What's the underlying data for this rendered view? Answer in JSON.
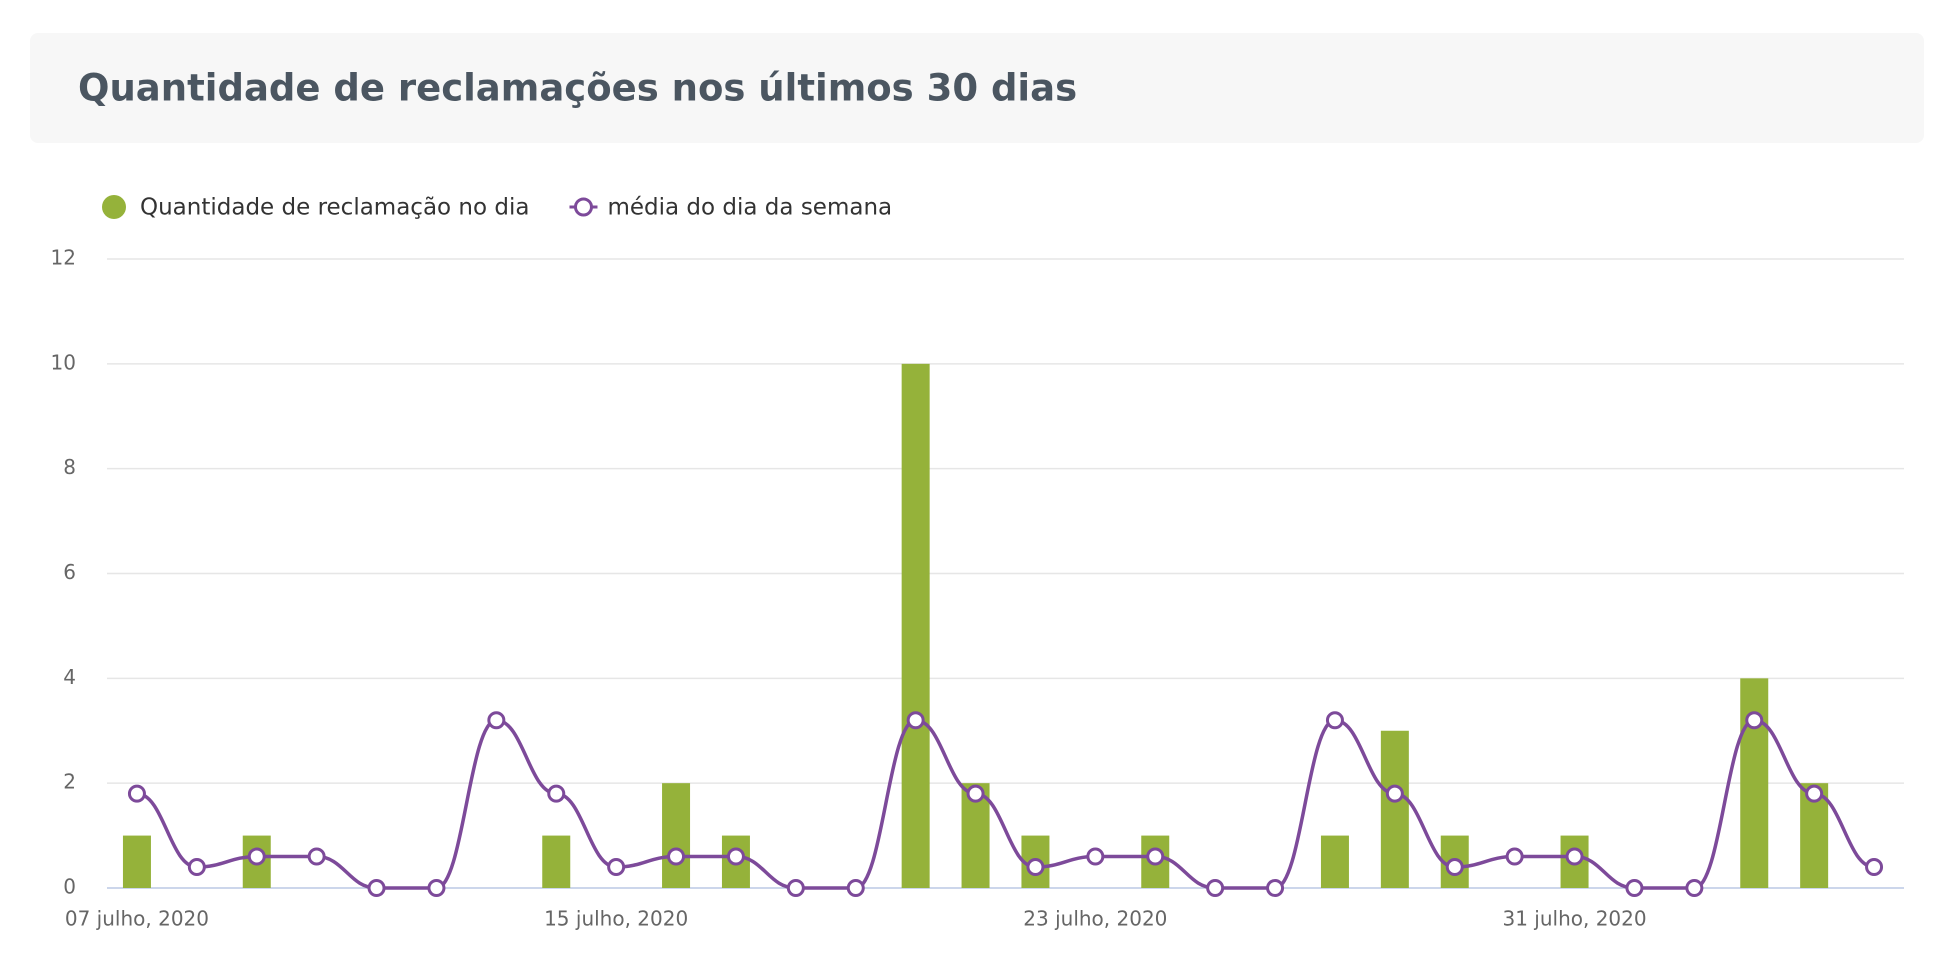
{
  "chart_data": {
    "type": "bar+line",
    "title": "Quantidade de reclamações nos últimos 30 dias",
    "categories": [
      "07 julho, 2020",
      null,
      null,
      null,
      null,
      null,
      null,
      null,
      "15 julho, 2020",
      null,
      null,
      null,
      null,
      null,
      null,
      null,
      "23 julho, 2020",
      null,
      null,
      null,
      null,
      null,
      null,
      null,
      "31 julho, 2020",
      null,
      null,
      null,
      null,
      null
    ],
    "series": [
      {
        "name": "Quantidade de reclamação no dia",
        "type": "bar",
        "color": "#95b23a",
        "values": [
          1,
          0,
          1,
          0,
          0,
          0,
          0,
          1,
          0,
          2,
          1,
          0,
          0,
          10,
          2,
          1,
          0,
          1,
          0,
          0,
          1,
          3,
          1,
          0,
          1,
          0,
          0,
          4,
          2,
          0
        ]
      },
      {
        "name": "média do dia da semana",
        "type": "line",
        "color": "#7d4a9a",
        "values": [
          1.8,
          0.4,
          0.6,
          0.6,
          0,
          0,
          3.2,
          1.8,
          0.4,
          0.6,
          0.6,
          0,
          0,
          3.2,
          1.8,
          0.4,
          0.6,
          0.6,
          0,
          0,
          3.2,
          1.8,
          0.4,
          0.6,
          0.6,
          0,
          0,
          3.2,
          1.8,
          0.4
        ]
      }
    ],
    "ylim": [
      0,
      12
    ],
    "yticks": [
      0,
      2,
      4,
      6,
      8,
      10,
      12
    ],
    "grid": true
  }
}
